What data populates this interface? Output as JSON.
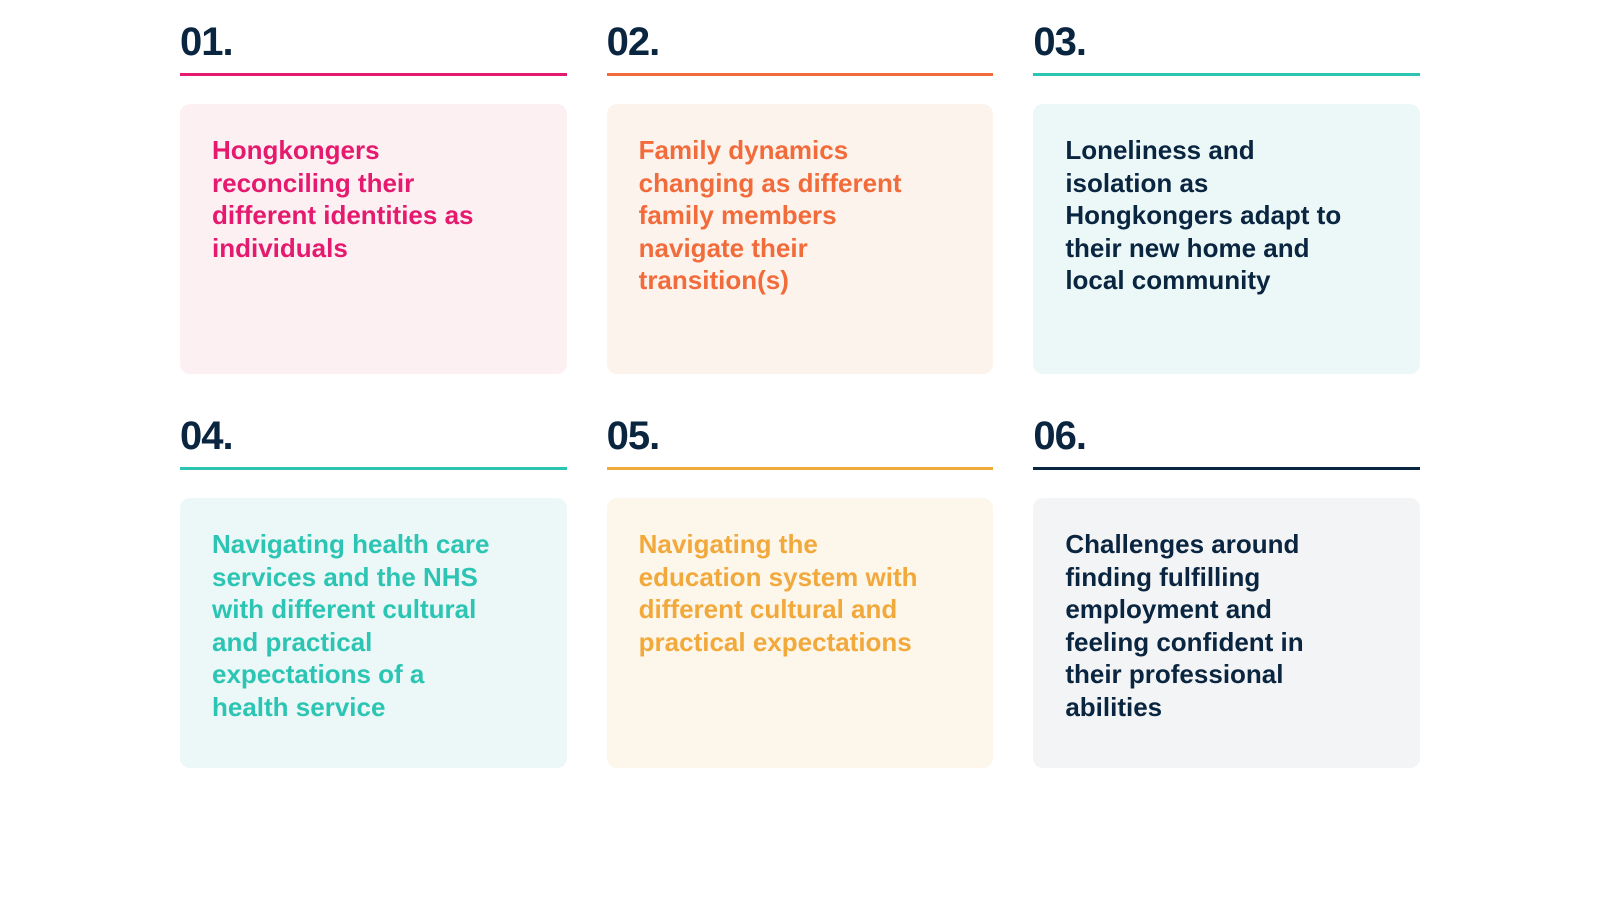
{
  "colors": {
    "number_text": "#0a2540"
  },
  "items": [
    {
      "number": "01.",
      "text": "Hongkongers reconciling their different identities as individuals",
      "underline_color": "#e51a6f",
      "text_color": "#e51a6f",
      "card_bg": "#fdf0f2"
    },
    {
      "number": "02.",
      "text": "Family dynamics changing as different family members navigate their transition(s)",
      "underline_color": "#f26b3a",
      "text_color": "#f26b3a",
      "card_bg": "#fdf3ed"
    },
    {
      "number": "03.",
      "text": "Loneliness and isolation as Hongkongers adapt to their new home and local community",
      "underline_color": "#2cc5b4",
      "text_color": "#0a2540",
      "card_bg": "#ecf8f7"
    },
    {
      "number": "04.",
      "text": "Navigating health care services and the NHS with different cultural and practical expectations of a health service",
      "underline_color": "#2cc5b4",
      "text_color": "#2cc5b4",
      "card_bg": "#ecf8f7"
    },
    {
      "number": "05.",
      "text": "Navigating the education system with different cultural and practical expectations",
      "underline_color": "#f2a93c",
      "text_color": "#f2a93c",
      "card_bg": "#fdf6ea"
    },
    {
      "number": "06.",
      "text": "Challenges around finding fulfilling employment and feeling confident in their professional abilities",
      "underline_color": "#0a2540",
      "text_color": "#0a2540",
      "card_bg": "#f3f4f5"
    }
  ]
}
